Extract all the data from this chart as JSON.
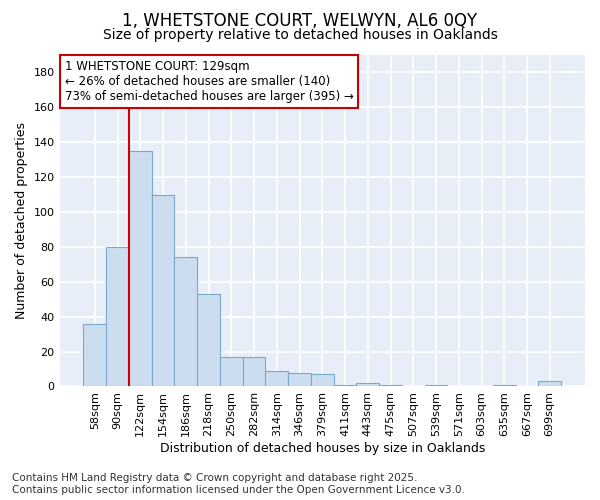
{
  "title_line1": "1, WHETSTONE COURT, WELWYN, AL6 0QY",
  "title_line2": "Size of property relative to detached houses in Oaklands",
  "xlabel": "Distribution of detached houses by size in Oaklands",
  "ylabel": "Number of detached properties",
  "categories": [
    "58sqm",
    "90sqm",
    "122sqm",
    "154sqm",
    "186sqm",
    "218sqm",
    "250sqm",
    "282sqm",
    "314sqm",
    "346sqm",
    "379sqm",
    "411sqm",
    "443sqm",
    "475sqm",
    "507sqm",
    "539sqm",
    "571sqm",
    "603sqm",
    "635sqm",
    "667sqm",
    "699sqm"
  ],
  "values": [
    36,
    80,
    135,
    110,
    74,
    53,
    17,
    17,
    9,
    8,
    7,
    1,
    2,
    1,
    0,
    1,
    0,
    0,
    1,
    0,
    3
  ],
  "bar_color": "#ccddf0",
  "bar_edge_color": "#7aaaca",
  "vline_x": 1.5,
  "vline_color": "#cc0000",
  "annotation_text": "1 WHETSTONE COURT: 129sqm\n← 26% of detached houses are smaller (140)\n73% of semi-detached houses are larger (395) →",
  "annotation_box_color": "#ffffff",
  "annotation_box_edge": "#cc0000",
  "ylim": [
    0,
    190
  ],
  "yticks": [
    0,
    20,
    40,
    60,
    80,
    100,
    120,
    140,
    160,
    180
  ],
  "background_color": "#e8eef8",
  "grid_color": "#ffffff",
  "footer_line1": "Contains HM Land Registry data © Crown copyright and database right 2025.",
  "footer_line2": "Contains public sector information licensed under the Open Government Licence v3.0.",
  "title_fontsize": 12,
  "subtitle_fontsize": 10,
  "axis_label_fontsize": 9,
  "tick_fontsize": 8,
  "annotation_fontsize": 8.5,
  "footer_fontsize": 7.5
}
